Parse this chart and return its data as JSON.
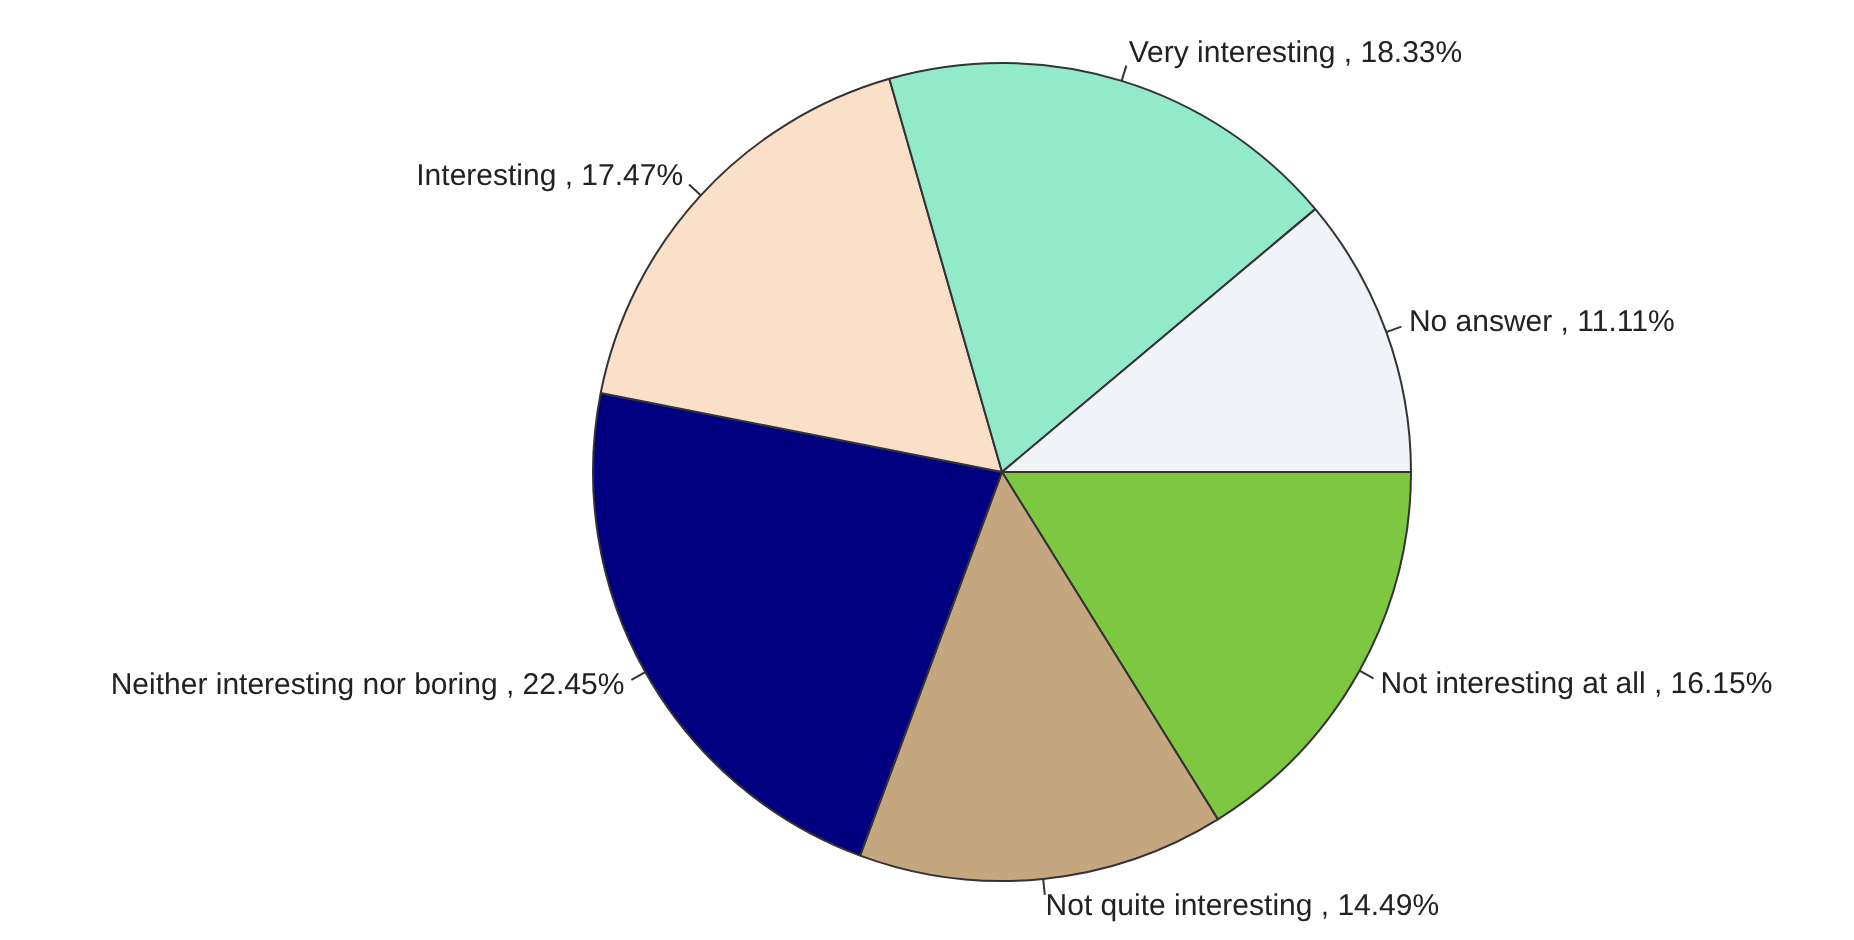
{
  "chart_data": {
    "type": "pie",
    "categories": [
      "Not interesting at all",
      "Not quite interesting",
      "Neither interesting nor boring",
      "Interesting",
      "Very interesting",
      "No answer"
    ],
    "values": [
      16.15,
      14.49,
      22.45,
      17.47,
      18.33,
      11.11
    ],
    "value_labels": [
      "16.15%",
      "14.49%",
      "22.45%",
      "17.47%",
      "18.33%",
      "11.11%"
    ],
    "colors": [
      "#7dc840",
      "#c4a77e",
      "#000080",
      "#fae0c8",
      "#93eacb",
      "#f0f4f8"
    ],
    "legend": false
  }
}
